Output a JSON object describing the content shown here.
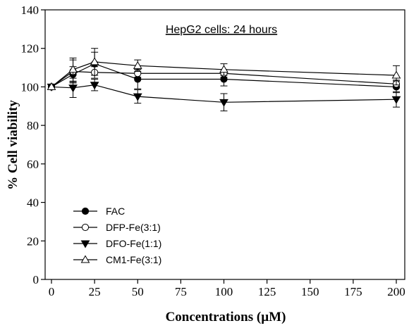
{
  "chart_data": {
    "type": "line",
    "annotation": "HepG2 cells: 24 hours",
    "xlabel": "Concentrations (µM)",
    "ylabel": "% Cell viability",
    "xlim": [
      0,
      200
    ],
    "ylim": [
      0,
      140
    ],
    "xticks": [
      0,
      25,
      50,
      75,
      100,
      125,
      150,
      175,
      200
    ],
    "yticks": [
      0,
      20,
      40,
      60,
      80,
      100,
      120,
      140
    ],
    "grid": false,
    "legend_position": "bottom-left",
    "x": [
      0,
      12.5,
      25,
      50,
      100,
      200
    ],
    "series": [
      {
        "name": "FAC",
        "marker": "filled-circle",
        "values": [
          100,
          106.5,
          112,
          104,
          104,
          100
        ],
        "errors": [
          0,
          4,
          6,
          5,
          3.5,
          3
        ]
      },
      {
        "name": "DFP-Fe(3:1)",
        "marker": "open-circle",
        "values": [
          100,
          108,
          107.5,
          107,
          107,
          101.5
        ],
        "errors": [
          0,
          6,
          3,
          2,
          2,
          2
        ]
      },
      {
        "name": "DFO-Fe(1:1)",
        "marker": "filled-triangle-down",
        "values": [
          100,
          99.5,
          101,
          95,
          92,
          93.5
        ],
        "errors": [
          0,
          5,
          3,
          3.5,
          4.5,
          4
        ]
      },
      {
        "name": "CM1-Fe(3:1)",
        "marker": "open-triangle-up",
        "values": [
          100,
          109,
          113,
          111,
          109,
          106
        ],
        "errors": [
          0,
          6,
          7,
          3,
          3,
          5
        ]
      }
    ]
  }
}
